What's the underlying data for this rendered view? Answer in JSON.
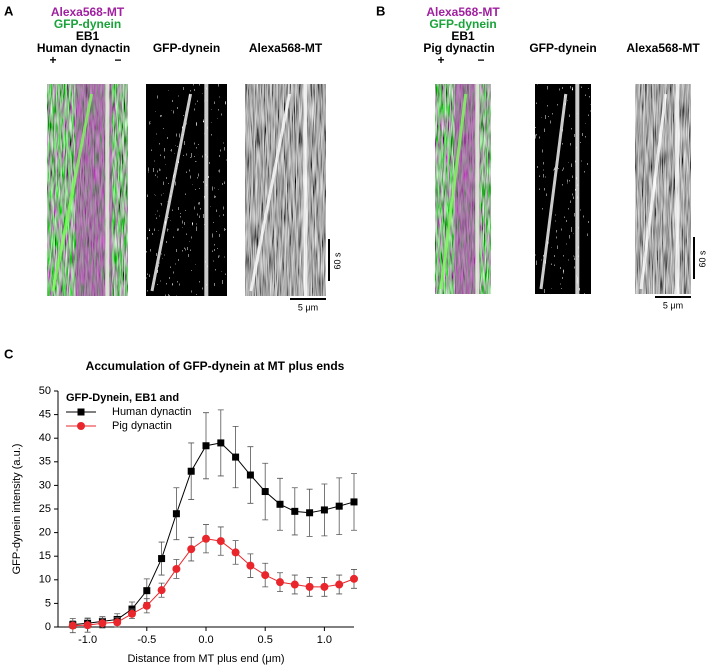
{
  "panels": [
    {
      "label": "A",
      "channels": [
        "Alexa568-MT",
        "GFP-dynein",
        "EB1"
      ],
      "dynactin": "Human dynactin",
      "plus": "+",
      "minus": "−",
      "titles": [
        "GFP-dynein",
        "Alexa568-MT"
      ],
      "time_scale": "60 s",
      "length_scale": "5 μm"
    },
    {
      "label": "B",
      "channels": [
        "Alexa568-MT",
        "GFP-dynein",
        "EB1"
      ],
      "dynactin": "Pig dynactin",
      "plus": "+",
      "minus": "−",
      "titles": [
        "GFP-dynein",
        "Alexa568-MT"
      ],
      "time_scale": "60 s",
      "length_scale": "5 μm"
    }
  ],
  "chart_data": {
    "type": "line",
    "label": "C",
    "title": "Accumulation of GFP-dynein at MT plus ends",
    "x_label": "Distance from MT plus end (μm)",
    "y_label": "GFP-dynein intensity (a.u.)",
    "legend_title": "GFP-Dynein, EB1 and",
    "x": [
      -1.125,
      -1,
      -0.875,
      -0.75,
      -0.625,
      -0.5,
      -0.375,
      -0.25,
      -0.125,
      0,
      0.125,
      0.25,
      0.375,
      0.5,
      0.625,
      0.75,
      0.875,
      1,
      1.125,
      1.25
    ],
    "series": [
      {
        "name": "Human dynactin",
        "color": "#000000",
        "marker": "square",
        "values": [
          0.5,
          0.8,
          1.2,
          1.6,
          3.8,
          7.7,
          14.5,
          24,
          33,
          38.4,
          39,
          36,
          32.2,
          28.7,
          26,
          24.5,
          24.2,
          24.8,
          25.6,
          26.5
        ],
        "errors": [
          0.8,
          1,
          1,
          1.2,
          1.5,
          2.5,
          3.5,
          5.5,
          6,
          7,
          7,
          6.5,
          6,
          6,
          5.5,
          5,
          5,
          5.5,
          6,
          6
        ]
      },
      {
        "name": "Pig dynactin",
        "color": "#e8262b",
        "marker": "circle",
        "values": [
          0.3,
          0.4,
          0.8,
          1,
          2.8,
          4.5,
          7.8,
          12.3,
          16.5,
          18.7,
          18.2,
          15.8,
          13,
          11,
          9.5,
          9,
          8.5,
          8.5,
          9,
          10.2
        ],
        "errors": [
          1.5,
          1.5,
          1,
          1,
          1,
          1.5,
          1.5,
          2,
          2.5,
          3,
          3,
          2.5,
          2.5,
          2.5,
          2,
          2,
          2,
          2,
          2,
          2
        ]
      }
    ],
    "xlim": [
      -1.25,
      1.25
    ],
    "xticks": [
      {
        "value": -1,
        "label": "-1.0"
      },
      -0.5,
      {
        "value": 0,
        "label": "0.0"
      },
      0.5,
      {
        "value": 1,
        "label": "1.0"
      }
    ],
    "ylim": [
      0,
      50
    ],
    "yticks": [
      0,
      5,
      10,
      15,
      20,
      25,
      30,
      35,
      40,
      45,
      50
    ],
    "grid": false
  }
}
